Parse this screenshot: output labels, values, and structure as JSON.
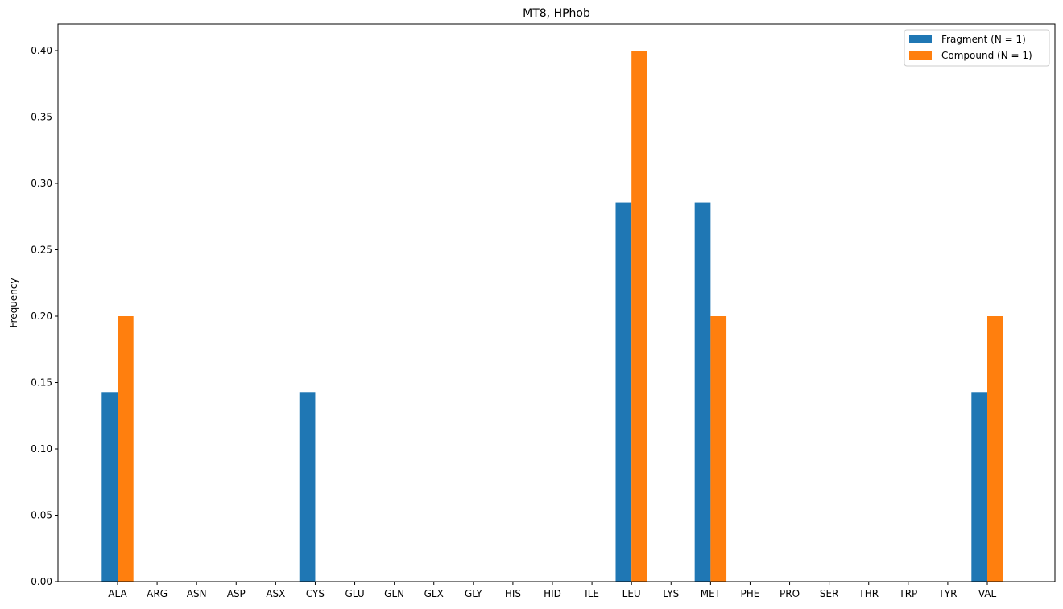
{
  "chart_data": {
    "type": "bar",
    "title": "MT8, HPhob",
    "xlabel": "",
    "ylabel": "Frequency",
    "categories": [
      "ALA",
      "ARG",
      "ASN",
      "ASP",
      "ASX",
      "CYS",
      "GLU",
      "GLN",
      "GLX",
      "GLY",
      "HIS",
      "HID",
      "ILE",
      "LEU",
      "LYS",
      "MET",
      "PHE",
      "PRO",
      "SER",
      "THR",
      "TRP",
      "TYR",
      "VAL"
    ],
    "series": [
      {
        "name": "Fragment (N = 1)",
        "color": "#1f77b4",
        "values": [
          0.142857,
          0,
          0,
          0,
          0,
          0.142857,
          0,
          0,
          0,
          0,
          0,
          0,
          0,
          0.285714,
          0,
          0.285714,
          0,
          0,
          0,
          0,
          0,
          0,
          0.142857
        ]
      },
      {
        "name": "Compound (N = 1)",
        "color": "#ff7f0e",
        "values": [
          0.2,
          0,
          0,
          0,
          0,
          0,
          0,
          0,
          0,
          0,
          0,
          0,
          0,
          0.4,
          0,
          0.2,
          0,
          0,
          0,
          0,
          0,
          0,
          0.2
        ]
      }
    ],
    "ylim": [
      0,
      0.42
    ],
    "yticks": [
      "0.00",
      "0.05",
      "0.10",
      "0.15",
      "0.20",
      "0.25",
      "0.30",
      "0.35",
      "0.40"
    ],
    "grid": false,
    "legend_position": "top-right"
  }
}
